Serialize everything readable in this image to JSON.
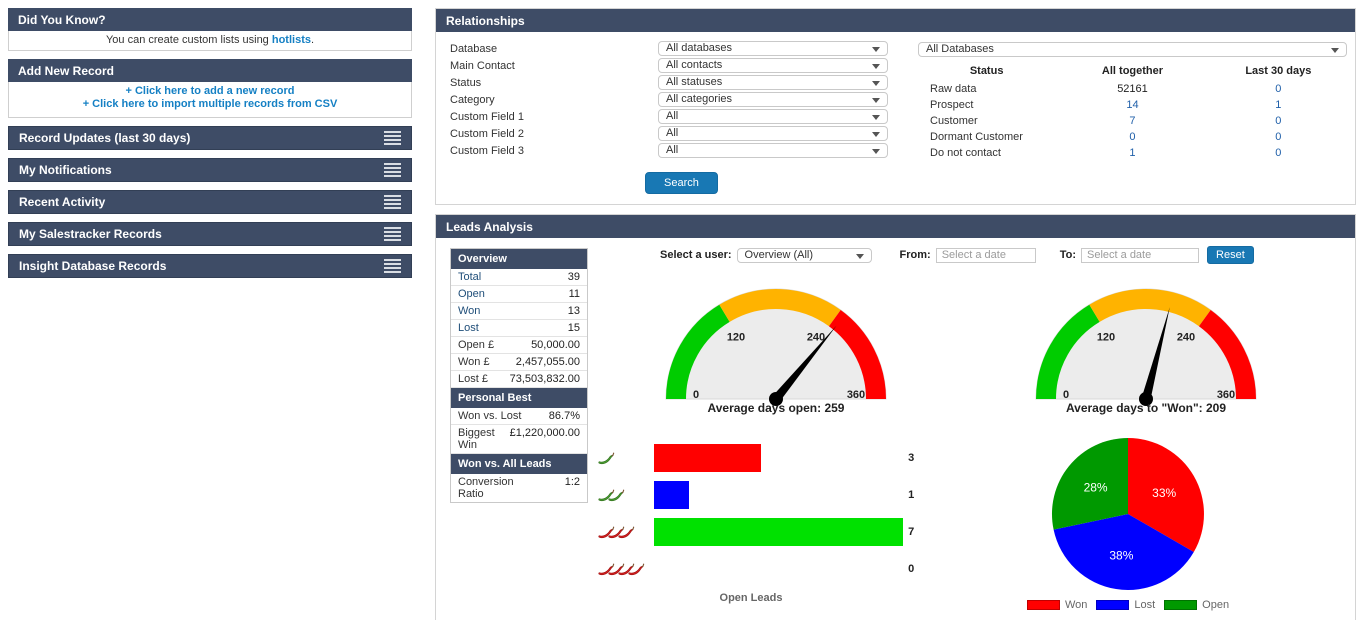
{
  "colors": {
    "panel_header": "#3e4c66",
    "link_blue": "#1580c4",
    "button_blue": "#1878b4",
    "number_link_blue": "#1f5fa9",
    "mini_link_blue": "#1f4e79"
  },
  "sidebar": {
    "did_you_know": {
      "title": "Did You Know?",
      "text_before": "You can create custom lists using ",
      "link_text": "hotlists",
      "text_after": "."
    },
    "add_new_record": {
      "title": "Add New Record",
      "links": [
        "+ Click here to add a new record",
        "+ Click here to import multiple records from CSV"
      ]
    },
    "collapsed_panels": [
      {
        "title": "Record Updates (last 30 days)"
      },
      {
        "title": "My Notifications"
      },
      {
        "title": "Recent Activity"
      },
      {
        "title": "My Salestracker Records"
      },
      {
        "title": "Insight Database Records"
      }
    ]
  },
  "relationships": {
    "title": "Relationships",
    "filters": [
      {
        "label": "Database",
        "value": "All databases"
      },
      {
        "label": "Main Contact",
        "value": "All contacts"
      },
      {
        "label": "Status",
        "value": "All statuses"
      },
      {
        "label": "Category",
        "value": "All categories"
      },
      {
        "label": "Custom Field 1",
        "value": "All"
      },
      {
        "label": "Custom Field 2",
        "value": "All"
      },
      {
        "label": "Custom Field 3",
        "value": "All"
      }
    ],
    "search_label": "Search",
    "database_select_value": "All Databases",
    "status_table": {
      "columns": [
        "Status",
        "All together",
        "Last 30 days"
      ],
      "rows": [
        {
          "status": "Raw data",
          "all_together": "52161",
          "all_link": false,
          "last_30_days": "0",
          "last_link": true
        },
        {
          "status": "Prospect",
          "all_together": "14",
          "all_link": true,
          "last_30_days": "1",
          "last_link": true
        },
        {
          "status": "Customer",
          "all_together": "7",
          "all_link": true,
          "last_30_days": "0",
          "last_link": true
        },
        {
          "status": "Dormant Customer",
          "all_together": "0",
          "all_link": true,
          "last_30_days": "0",
          "last_link": true
        },
        {
          "status": "Do not contact",
          "all_together": "1",
          "all_link": true,
          "last_30_days": "0",
          "last_link": true
        }
      ]
    }
  },
  "leads_analysis": {
    "title": "Leads Analysis",
    "tables": [
      {
        "title": "Overview",
        "rows": [
          {
            "label": "Total",
            "value": "39",
            "link": true
          },
          {
            "label": "Open",
            "value": "11",
            "link": true
          },
          {
            "label": "Won",
            "value": "13",
            "link": true
          },
          {
            "label": "Lost",
            "value": "15",
            "link": true
          },
          {
            "label": "Open £",
            "value": "50,000.00",
            "link": false
          },
          {
            "label": "Won £",
            "value": "2,457,055.00",
            "link": false
          },
          {
            "label": "Lost £",
            "value": "73,503,832.00",
            "link": false
          }
        ]
      },
      {
        "title": "Personal Best",
        "rows": [
          {
            "label": "Won vs. Lost",
            "value": "86.7%",
            "link": false
          },
          {
            "label": "Biggest Win",
            "value": "£1,220,000.00",
            "link": false
          }
        ]
      },
      {
        "title": "Won vs. All Leads",
        "rows": [
          {
            "label": "Conversion Ratio",
            "value": "1:2",
            "link": false
          }
        ]
      }
    ],
    "controls": {
      "user_label": "Select a user:",
      "user_value": "Overview (All)",
      "from_label": "From:",
      "to_label": "To:",
      "date_placeholder": "Select a date",
      "reset_label": "Reset"
    }
  },
  "chart_data": [
    {
      "type": "gauge",
      "caption": "Average days open: 259",
      "value": 259,
      "min": 0,
      "max": 360,
      "ticks": [
        0,
        120,
        240,
        360
      ],
      "zones": [
        {
          "from": 0,
          "to": 118,
          "color": "#00cc00"
        },
        {
          "from": 118,
          "to": 252,
          "color": "#ffb300"
        },
        {
          "from": 252,
          "to": 360,
          "color": "#ff0000"
        }
      ]
    },
    {
      "type": "gauge",
      "caption": "Average days to \"Won\": 209",
      "value": 209,
      "min": 0,
      "max": 360,
      "ticks": [
        0,
        120,
        240,
        360
      ],
      "zones": [
        {
          "from": 0,
          "to": 118,
          "color": "#00cc00"
        },
        {
          "from": 118,
          "to": 252,
          "color": "#ffb300"
        },
        {
          "from": 252,
          "to": 360,
          "color": "#ff0000"
        }
      ]
    },
    {
      "type": "bar",
      "orientation": "horizontal",
      "xlabel": "Open Leads",
      "xmax": 7,
      "rows": [
        {
          "icon": "chili",
          "icon_count": 1,
          "icon_color": "green",
          "value": 3,
          "bar_color": "#ff0000"
        },
        {
          "icon": "chili",
          "icon_count": 2,
          "icon_color": "green",
          "value": 1,
          "bar_color": "#0000ff"
        },
        {
          "icon": "chili",
          "icon_count": 3,
          "icon_color": "red",
          "value": 7,
          "bar_color": "#00e100"
        },
        {
          "icon": "chili",
          "icon_count": 4,
          "icon_color": "red",
          "value": 0,
          "bar_color": "#00e100"
        }
      ]
    },
    {
      "type": "pie",
      "start": "top",
      "direction": "clockwise",
      "slices": [
        {
          "label": "Won",
          "pct": 33,
          "display": "33%",
          "color": "#ff0000"
        },
        {
          "label": "Lost",
          "pct": 38,
          "display": "38%",
          "color": "#0000ff"
        },
        {
          "label": "Open",
          "pct": 28,
          "display": "28%",
          "color": "#009900"
        }
      ],
      "legend_position": "bottom"
    }
  ]
}
